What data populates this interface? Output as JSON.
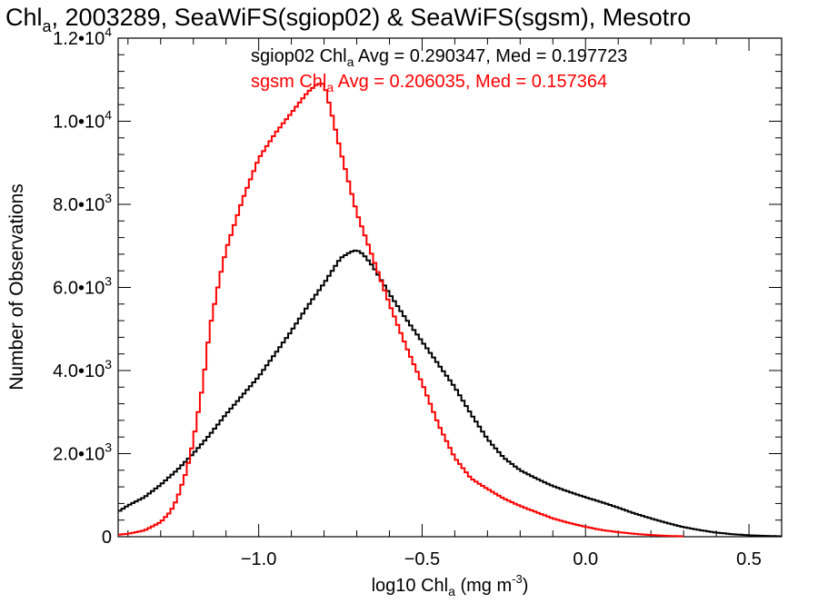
{
  "chart_data": {
    "type": "line",
    "title": {
      "pre": "Chl",
      "sub": "a",
      "post": ", 2003289, SeaWiFS(sgiop02) & SeaWiFS(sgsm), Mesotro"
    },
    "xlabel": {
      "pre": "log10 Chl",
      "sub": "a",
      "mid": " (mg m",
      "sup": "-3",
      "post": ")"
    },
    "ylabel": "Number of Observations",
    "xlim": [
      -1.43,
      0.6
    ],
    "ylim": [
      0,
      12000
    ],
    "x_ticks": [
      {
        "value": -1.0,
        "label": "−1.0"
      },
      {
        "value": -0.5,
        "label": "−0.5"
      },
      {
        "value": 0.0,
        "label": "0.0"
      },
      {
        "value": 0.5,
        "label": "0.5"
      }
    ],
    "y_ticks": [
      {
        "value": 0,
        "mant": "0",
        "exp": ""
      },
      {
        "value": 2000,
        "mant": "2.0•10",
        "exp": "3"
      },
      {
        "value": 4000,
        "mant": "4.0•10",
        "exp": "3"
      },
      {
        "value": 6000,
        "mant": "6.0•10",
        "exp": "3"
      },
      {
        "value": 8000,
        "mant": "8.0•10",
        "exp": "3"
      },
      {
        "value": 10000,
        "mant": "1.0•10",
        "exp": "4"
      },
      {
        "value": 12000,
        "mant": "1.2•10",
        "exp": "4"
      }
    ],
    "legend": [
      {
        "pre": "sgiop02 Chl",
        "sub": "a",
        "post": " Avg = 0.290347, Med = 0.197723",
        "color": "#000000"
      },
      {
        "pre": "sgsm Chl",
        "sub": "a",
        "post": " Avg = 0.206035, Med = 0.157364",
        "color": "#ff0000"
      }
    ],
    "legend_position": "top",
    "grid": false,
    "series": [
      {
        "color": "#000000",
        "x": [
          -1.43,
          -1.4,
          -1.35,
          -1.3,
          -1.25,
          -1.2,
          -1.15,
          -1.1,
          -1.05,
          -1.0,
          -0.95,
          -0.9,
          -0.85,
          -0.8,
          -0.75,
          -0.72,
          -0.7,
          -0.68,
          -0.65,
          -0.6,
          -0.55,
          -0.5,
          -0.45,
          -0.4,
          -0.35,
          -0.3,
          -0.25,
          -0.2,
          -0.15,
          -0.1,
          -0.05,
          0.0,
          0.05,
          0.1,
          0.15,
          0.2,
          0.25,
          0.3,
          0.35,
          0.4,
          0.45,
          0.5,
          0.55,
          0.6
        ],
        "y": [
          600,
          750,
          950,
          1250,
          1600,
          2000,
          2450,
          2950,
          3400,
          3850,
          4400,
          4950,
          5550,
          6100,
          6700,
          6850,
          6900,
          6800,
          6500,
          5850,
          5250,
          4700,
          4150,
          3600,
          2950,
          2350,
          1900,
          1600,
          1400,
          1220,
          1080,
          950,
          830,
          700,
          560,
          440,
          330,
          230,
          160,
          100,
          60,
          35,
          20,
          10
        ]
      },
      {
        "color": "#ff0000",
        "x": [
          -1.43,
          -1.4,
          -1.35,
          -1.3,
          -1.27,
          -1.25,
          -1.22,
          -1.2,
          -1.17,
          -1.15,
          -1.12,
          -1.1,
          -1.05,
          -1.0,
          -0.95,
          -0.9,
          -0.85,
          -0.82,
          -0.8,
          -0.78,
          -0.75,
          -0.72,
          -0.7,
          -0.65,
          -0.6,
          -0.55,
          -0.5,
          -0.45,
          -0.4,
          -0.35,
          -0.3,
          -0.25,
          -0.2,
          -0.15,
          -0.1,
          -0.05,
          0.0,
          0.05,
          0.1,
          0.15,
          0.2,
          0.25,
          0.3
        ],
        "y": [
          50,
          70,
          150,
          350,
          600,
          900,
          1600,
          2300,
          3700,
          5000,
          6200,
          6900,
          8100,
          9100,
          9700,
          10200,
          10700,
          10900,
          10900,
          10300,
          9300,
          8400,
          7800,
          6700,
          5600,
          4600,
          3700,
          2700,
          1900,
          1400,
          1150,
          920,
          740,
          590,
          440,
          330,
          240,
          160,
          110,
          70,
          40,
          20,
          10
        ]
      }
    ]
  }
}
